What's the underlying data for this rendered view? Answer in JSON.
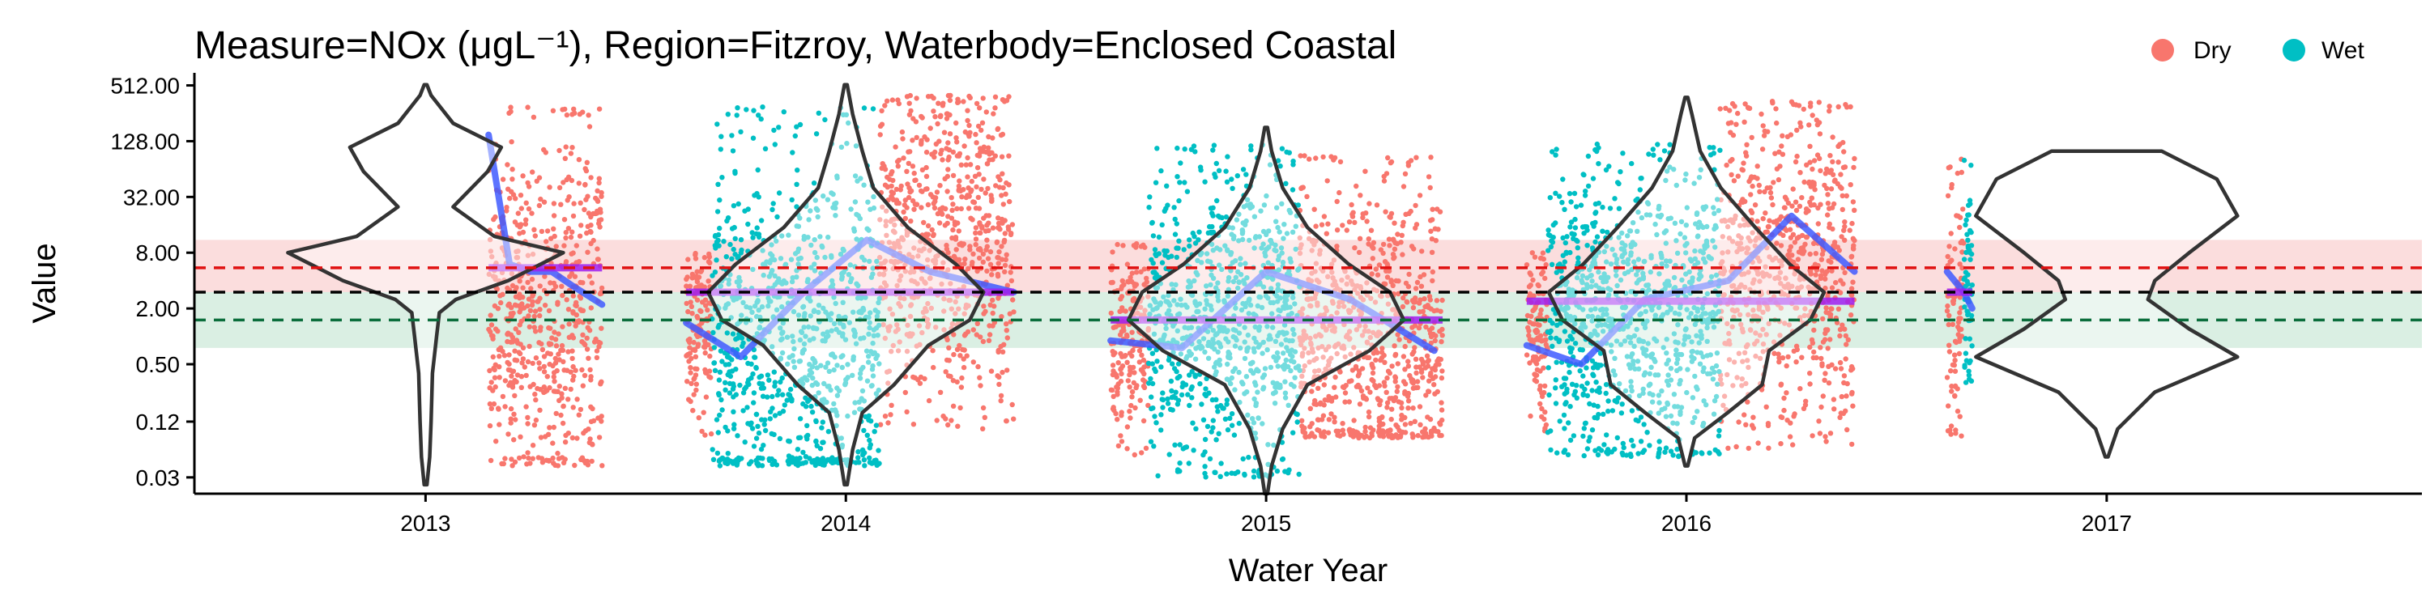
{
  "colors": {
    "dry": "#F8766D",
    "wet": "#00BFC4",
    "trend": "#3F5BFF",
    "trend_light": "#A9B0FF",
    "median": "#A020F0",
    "median_light": "#D8A8FF",
    "guideline_red": "#E01010",
    "guideline_black": "#000000",
    "guideline_green": "#0B6E3C",
    "band_red": "#FAD2D2",
    "band_green": "#CDE9DA",
    "violin": "#333333"
  },
  "chart_data": {
    "type": "scatter",
    "title": "Measure=NOx (μgL⁻¹), Region=Fitzroy, Waterbody=Enclosed Coastal",
    "xlabel": "Water Year",
    "ylabel": "Value",
    "y_scale": "log2",
    "ylim": [
      0.02,
      700
    ],
    "xlim": [
      2012.45,
      2017.75
    ],
    "x_ticks": [
      2013,
      2014,
      2015,
      2016,
      2017
    ],
    "x_tick_labels": [
      "2013",
      "2014",
      "2015",
      "2016",
      "2017"
    ],
    "y_ticks": [
      0.03,
      0.12,
      0.5,
      2,
      8,
      32,
      128,
      512
    ],
    "y_tick_labels": [
      "0.03",
      "0.12",
      "0.50",
      "2.00",
      "8.00",
      "32.00",
      "128.00",
      "512.00"
    ],
    "legend": {
      "position": "top-right",
      "entries": [
        "Dry",
        "Wet"
      ]
    },
    "guidelines": {
      "upper": 5.5,
      "middle": 3.0,
      "lower": 1.5
    },
    "bands": {
      "upper": [
        3.0,
        11.0
      ],
      "lower": [
        0.75,
        3.0
      ]
    },
    "series": [
      {
        "name": "Dry",
        "segments": [
          {
            "x": [
              2013.15,
              2013.42
            ],
            "y_median": 2.0,
            "y_low": 0.04,
            "y_high": 300
          },
          {
            "x": [
              2013.62,
              2013.68
            ],
            "y_median": 1.2,
            "y_low": 0.08,
            "y_high": 8
          },
          {
            "x": [
              2014.08,
              2014.4
            ],
            "y_median": 10.0,
            "y_low": 0.1,
            "y_high": 400
          },
          {
            "x": [
              2014.63,
              2014.72
            ],
            "y_median": 1.0,
            "y_low": 0.05,
            "y_high": 10
          },
          {
            "x": [
              2015.08,
              2015.42
            ],
            "y_median": 1.0,
            "y_low": 0.08,
            "y_high": 90
          },
          {
            "x": [
              2015.62,
              2015.67
            ],
            "y_median": 1.0,
            "y_low": 0.08,
            "y_high": 8
          },
          {
            "x": [
              2016.08,
              2016.4
            ],
            "y_median": 6.0,
            "y_low": 0.06,
            "y_high": 350
          },
          {
            "x": [
              2016.62,
              2016.66
            ],
            "y_median": 2.0,
            "y_low": 0.08,
            "y_high": 100
          }
        ]
      },
      {
        "name": "Wet",
        "segments": [
          {
            "x": [
              2013.68,
              2014.08
            ],
            "y_median": 1.0,
            "y_low": 0.04,
            "y_high": 300
          },
          {
            "x": [
              2014.72,
              2015.08
            ],
            "y_median": 1.5,
            "y_low": 0.03,
            "y_high": 120
          },
          {
            "x": [
              2015.67,
              2016.08
            ],
            "y_median": 1.8,
            "y_low": 0.05,
            "y_high": 120
          },
          {
            "x": [
              2016.66,
              2016.68
            ],
            "y_median": 3.0,
            "y_low": 0.3,
            "y_high": 80
          }
        ]
      }
    ],
    "trend_lines": [
      {
        "x": [
          2013.15,
          2013.2,
          2013.25,
          2013.3,
          2013.35,
          2013.42
        ],
        "y": [
          150,
          6,
          5,
          5,
          3.5,
          2.2
        ]
      },
      {
        "x": [
          2013.62,
          2013.75,
          2013.9,
          2014.05,
          2014.2,
          2014.4
        ],
        "y": [
          1.4,
          0.6,
          3,
          11,
          5,
          3
        ]
      },
      {
        "x": [
          2014.63,
          2014.8,
          2015.0,
          2015.2,
          2015.4
        ],
        "y": [
          0.9,
          0.75,
          5,
          2.5,
          0.7
        ]
      },
      {
        "x": [
          2015.62,
          2015.75,
          2015.9,
          2016.1,
          2016.25,
          2016.4
        ],
        "y": [
          0.8,
          0.5,
          2.5,
          4,
          20,
          5
        ]
      },
      {
        "x": [
          2016.62,
          2016.66,
          2016.68
        ],
        "y": [
          5,
          3,
          2
        ]
      }
    ],
    "annual_medians": [
      {
        "x": [
          2013.15,
          2013.42
        ],
        "y": 5.5
      },
      {
        "x": [
          2013.62,
          2014.4
        ],
        "y": 3.0
      },
      {
        "x": [
          2014.63,
          2015.42
        ],
        "y": 1.5
      },
      {
        "x": [
          2015.62,
          2016.4
        ],
        "y": 2.4
      },
      {
        "x": [
          2016.62,
          2016.68
        ],
        "y": 3.0
      }
    ],
    "violins": [
      {
        "x": 2013,
        "y_min": 0.025,
        "y_max": 520,
        "density": [
          [
            0.025,
            0.01
          ],
          [
            0.05,
            0.03
          ],
          [
            0.12,
            0.04
          ],
          [
            0.4,
            0.05
          ],
          [
            1.0,
            0.08
          ],
          [
            1.8,
            0.1
          ],
          [
            2.5,
            0.22
          ],
          [
            4,
            0.6
          ],
          [
            8,
            1.0
          ],
          [
            12,
            0.5
          ],
          [
            25,
            0.2
          ],
          [
            60,
            0.45
          ],
          [
            110,
            0.55
          ],
          [
            200,
            0.2
          ],
          [
            400,
            0.04
          ],
          [
            520,
            0.01
          ]
        ]
      },
      {
        "x": 2014,
        "y_min": 0.025,
        "y_max": 520,
        "density": [
          [
            0.025,
            0.01
          ],
          [
            0.06,
            0.05
          ],
          [
            0.15,
            0.12
          ],
          [
            0.3,
            0.35
          ],
          [
            0.8,
            0.6
          ],
          [
            1.5,
            0.9
          ],
          [
            3,
            1.0
          ],
          [
            6,
            0.8
          ],
          [
            15,
            0.45
          ],
          [
            40,
            0.2
          ],
          [
            100,
            0.12
          ],
          [
            250,
            0.05
          ],
          [
            520,
            0.01
          ]
        ]
      },
      {
        "x": 2015,
        "y_min": 0.02,
        "y_max": 180,
        "density": [
          [
            0.02,
            0.01
          ],
          [
            0.04,
            0.04
          ],
          [
            0.1,
            0.12
          ],
          [
            0.3,
            0.3
          ],
          [
            0.7,
            0.75
          ],
          [
            1.5,
            1.0
          ],
          [
            3,
            0.9
          ],
          [
            6,
            0.6
          ],
          [
            15,
            0.3
          ],
          [
            40,
            0.12
          ],
          [
            100,
            0.04
          ],
          [
            180,
            0.01
          ]
        ]
      },
      {
        "x": 2016,
        "y_min": 0.04,
        "y_max": 380,
        "density": [
          [
            0.04,
            0.01
          ],
          [
            0.08,
            0.06
          ],
          [
            0.15,
            0.3
          ],
          [
            0.3,
            0.55
          ],
          [
            0.7,
            0.6
          ],
          [
            1.5,
            0.9
          ],
          [
            3,
            1.0
          ],
          [
            6,
            0.75
          ],
          [
            15,
            0.5
          ],
          [
            40,
            0.25
          ],
          [
            100,
            0.1
          ],
          [
            250,
            0.04
          ],
          [
            380,
            0.01
          ]
        ]
      },
      {
        "x": 2017,
        "y_min": 0.05,
        "y_max": 100,
        "density": [
          [
            0.05,
            0.01
          ],
          [
            0.1,
            0.08
          ],
          [
            0.25,
            0.35
          ],
          [
            0.6,
            0.95
          ],
          [
            1.2,
            0.6
          ],
          [
            2.5,
            0.3
          ],
          [
            4,
            0.35
          ],
          [
            8,
            0.6
          ],
          [
            20,
            0.95
          ],
          [
            50,
            0.8
          ],
          [
            100,
            0.4
          ]
        ]
      }
    ]
  }
}
